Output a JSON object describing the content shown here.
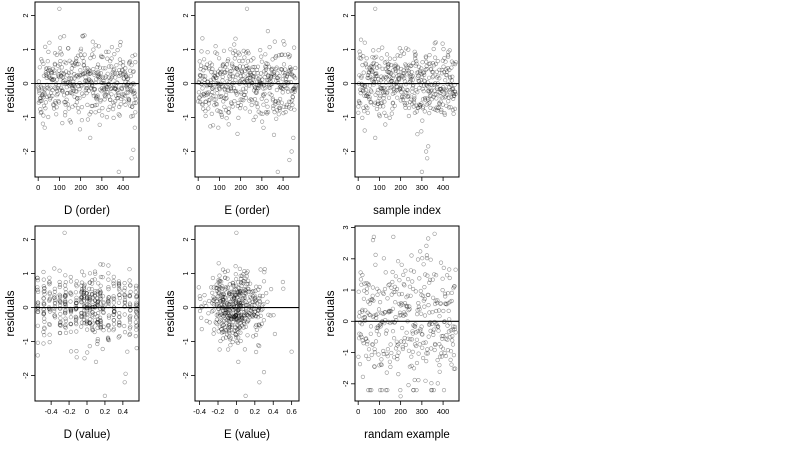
{
  "chart_data": [
    {
      "type": "scatter",
      "xlabel": "D (order)",
      "ylabel": "residuals",
      "xlim": [
        -15,
        475
      ],
      "ylim": [
        -2.75,
        2.4
      ],
      "xticks": [
        0,
        100,
        200,
        300,
        400
      ],
      "yticks": [
        -2,
        -1,
        0,
        1,
        2
      ],
      "hline": 0,
      "x_kind": "index",
      "n_points": 470,
      "y_sd": 0.52,
      "outliers": [
        [
          100,
          2.2
        ],
        [
          245,
          -1.6
        ],
        [
          440,
          -2.2
        ],
        [
          448,
          -1.95
        ],
        [
          380,
          -2.6
        ],
        [
          455,
          -1.3
        ]
      ]
    },
    {
      "type": "scatter",
      "xlabel": "E (order)",
      "ylabel": "residuals",
      "xlim": [
        -15,
        475
      ],
      "ylim": [
        -2.75,
        2.4
      ],
      "xticks": [
        0,
        100,
        200,
        300,
        400
      ],
      "yticks": [
        -2,
        -1,
        0,
        1,
        2
      ],
      "hline": 0,
      "x_kind": "index",
      "n_points": 470,
      "y_sd": 0.52,
      "outliers": [
        [
          230,
          2.2
        ],
        [
          440,
          -2.0
        ],
        [
          430,
          -2.25
        ],
        [
          375,
          -2.6
        ],
        [
          448,
          -1.6
        ],
        [
          95,
          -1.3
        ]
      ]
    },
    {
      "type": "scatter",
      "xlabel": "sample index",
      "ylabel": "residuals",
      "xlim": [
        -15,
        475
      ],
      "ylim": [
        -2.75,
        2.4
      ],
      "xticks": [
        0,
        100,
        200,
        300,
        400
      ],
      "yticks": [
        -2,
        -1,
        0,
        1,
        2
      ],
      "hline": 0,
      "x_kind": "index",
      "n_points": 470,
      "y_sd": 0.52,
      "outliers": [
        [
          80,
          2.2
        ],
        [
          320,
          -2.0
        ],
        [
          330,
          -1.85
        ],
        [
          300,
          -2.6
        ],
        [
          80,
          -1.6
        ],
        [
          325,
          -2.2
        ]
      ]
    },
    {
      "type": "scatter",
      "xlabel": "D (value)",
      "ylabel": "residuals",
      "xlim": [
        -0.58,
        0.58
      ],
      "ylim": [
        -2.75,
        2.4
      ],
      "xticks": [
        -0.4,
        -0.2,
        0.0,
        0.2,
        0.4
      ],
      "yticks": [
        -2,
        -1,
        0,
        1,
        2
      ],
      "hline": 0,
      "x_kind": "columns",
      "columns": [
        -0.55,
        -0.48,
        -0.42,
        -0.36,
        -0.3,
        -0.24,
        -0.18,
        -0.12,
        -0.06,
        -0.03,
        0.0,
        0.03,
        0.06,
        0.09,
        0.12,
        0.15,
        0.18,
        0.24,
        0.3,
        0.36,
        0.42,
        0.48,
        0.55
      ],
      "n_points": 470,
      "y_sd": 0.52,
      "outliers": [
        [
          -0.25,
          2.2
        ],
        [
          0.42,
          -2.2
        ],
        [
          0.43,
          -1.95
        ],
        [
          0.2,
          -2.6
        ],
        [
          0.1,
          -1.6
        ],
        [
          0.45,
          -1.3
        ]
      ]
    },
    {
      "type": "scatter",
      "xlabel": "E (value)",
      "ylabel": "residuals",
      "xlim": [
        -0.45,
        0.68
      ],
      "ylim": [
        -2.75,
        2.4
      ],
      "xticks": [
        -0.4,
        -0.2,
        0.0,
        0.2,
        0.4,
        0.6
      ],
      "yticks": [
        -2,
        -1,
        0,
        1,
        2
      ],
      "hline": 0,
      "x_kind": "clustered",
      "x_center": 0.0,
      "x_sd": 0.17,
      "n_points": 470,
      "y_sd": 0.5,
      "outliers": [
        [
          0.0,
          2.2
        ],
        [
          0.3,
          -1.9
        ],
        [
          0.25,
          -2.2
        ],
        [
          0.1,
          -2.6
        ],
        [
          0.02,
          -1.6
        ],
        [
          0.6,
          -1.3
        ]
      ]
    },
    {
      "type": "scatter",
      "xlabel": "randam example",
      "ylabel": "residuals",
      "xlim": [
        -15,
        475
      ],
      "ylim": [
        -2.55,
        3.05
      ],
      "xticks": [
        0,
        100,
        200,
        300,
        400
      ],
      "yticks": [
        -2,
        -1,
        0,
        1,
        2,
        3
      ],
      "hline": 0,
      "x_kind": "index",
      "n_points": 380,
      "y_sd": 1.05,
      "outliers": [
        [
          70,
          2.6
        ],
        [
          360,
          2.8
        ],
        [
          330,
          2.65
        ],
        [
          200,
          -2.4
        ],
        [
          260,
          -2.2
        ]
      ]
    }
  ]
}
